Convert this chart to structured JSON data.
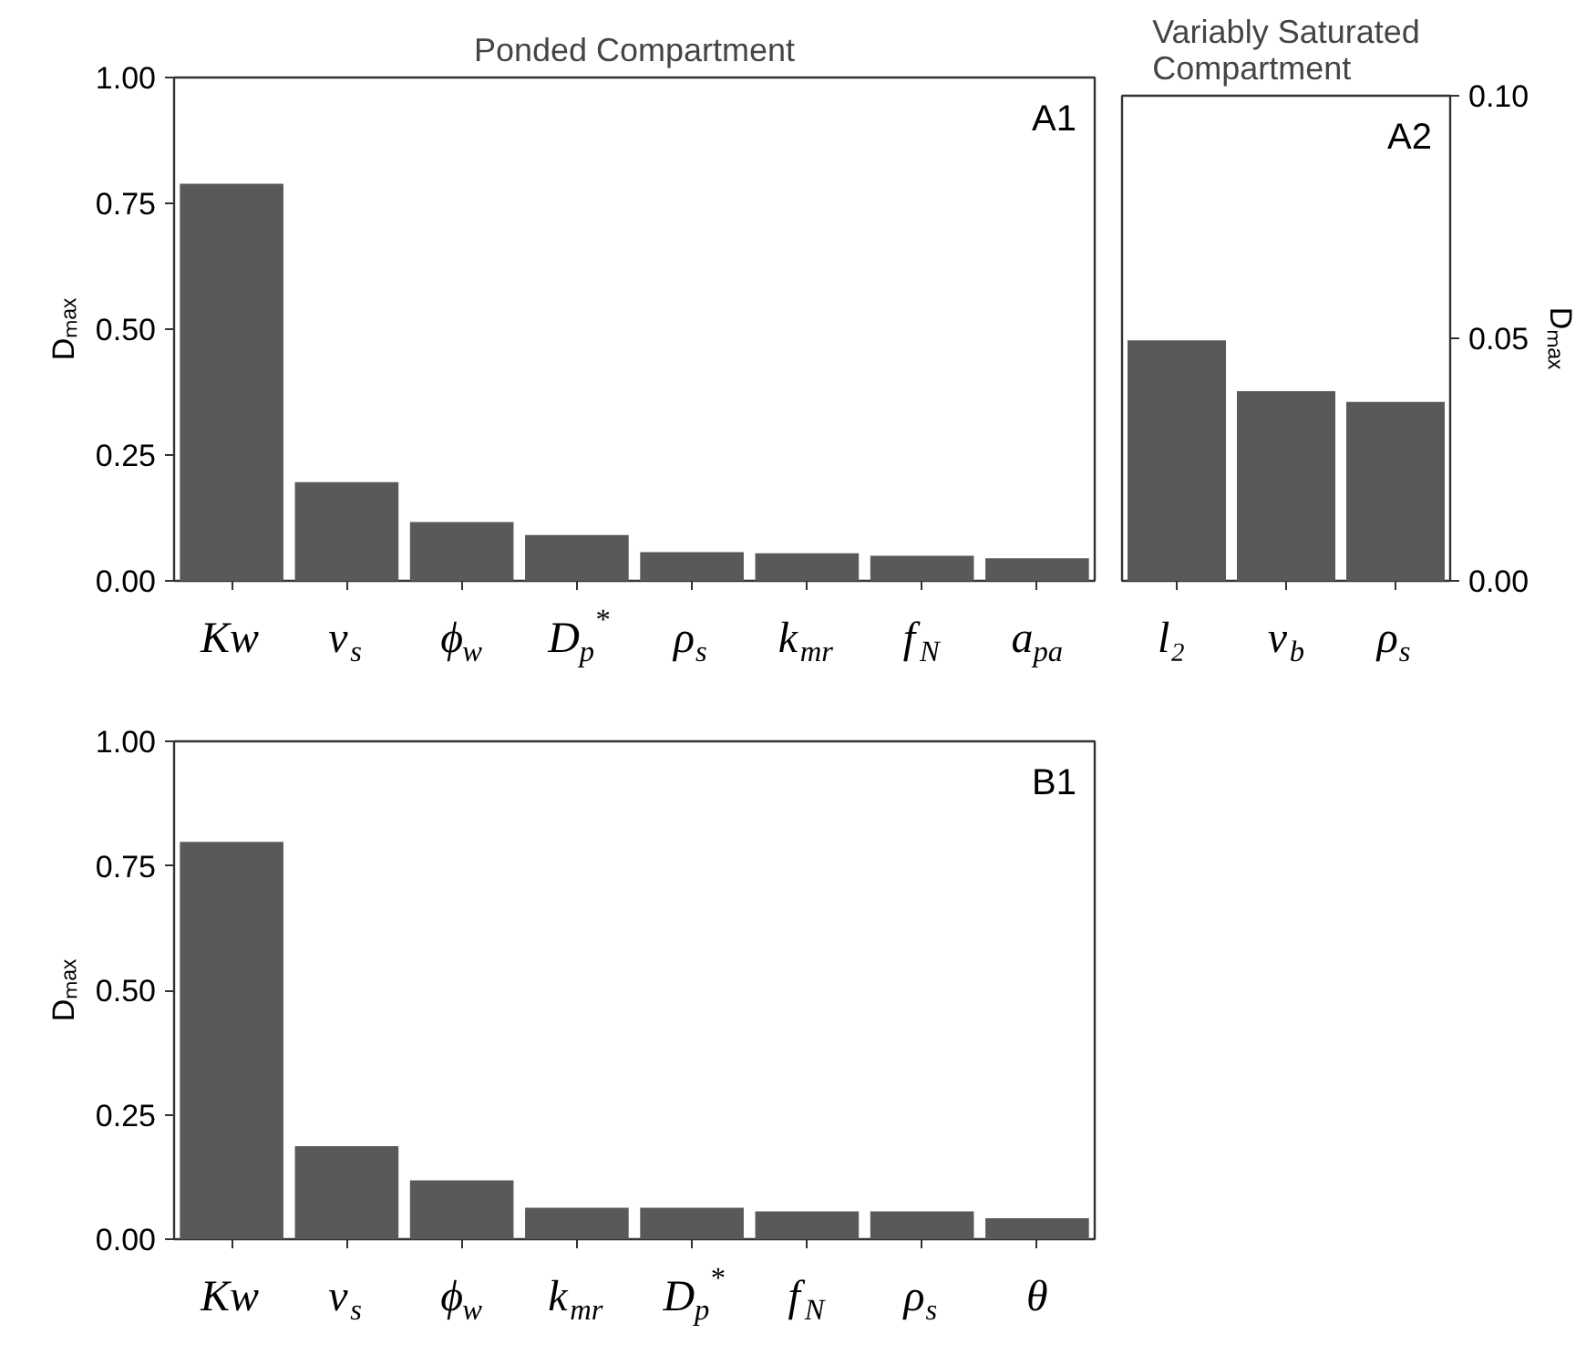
{
  "chart_data": [
    {
      "type": "bar",
      "title": "Ponded Compartment",
      "ylabel": "Dₘₐₓ",
      "annotations": [
        "A1"
      ],
      "categories": [
        "Kw",
        "v$_{s}$",
        "ϕ$_{w}$",
        "D$_{p}$$^{*}$",
        "ρ$_{s}$",
        "k$_{mr}$",
        "f$_{N}$",
        "a$_{pa}$"
      ],
      "series": [
        {
          "color": "#595959",
          "values": [
            0.789,
            0.196,
            0.117,
            0.091,
            0.057,
            0.055,
            0.05,
            0.045
          ]
        }
      ],
      "ylim": [
        0,
        1
      ],
      "yticks": [
        {
          "value": 0,
          "label": "0.00"
        },
        {
          "value": 0.25,
          "label": "0.25"
        },
        {
          "value": 0.5,
          "label": "0.50"
        },
        {
          "value": 0.75,
          "label": "0.75"
        },
        {
          "value": 1,
          "label": "1.00"
        }
      ]
    },
    {
      "type": "bar",
      "title": "Variably Saturated Compartment",
      "y2label": "Dₘₐₓ",
      "annotations": [
        "A2"
      ],
      "categories": [
        "l₂",
        "v$_{b}$",
        "ρ$_{s}$"
      ],
      "series": [
        {
          "color": "#595959",
          "axis": "y2",
          "values": [
            0.0496,
            0.0391,
            0.0369
          ]
        }
      ],
      "y2lim": [
        0,
        0.1
      ],
      "y2ticks": [
        {
          "value": 0,
          "label": "0.00"
        },
        {
          "value": 0.05,
          "label": "0.05"
        },
        {
          "value": 0.1,
          "label": "0.10"
        }
      ]
    },
    {
      "type": "bar",
      "ylabel": "Dₘₐₓ",
      "annotations": [
        "B1"
      ],
      "categories": [
        "Kw",
        "v$_{s}$",
        "ϕ$_{w}$",
        "k$_{mr}$",
        "D$_{p}$$^{*}$",
        "f$_{N}$",
        "ρ$_{s}$",
        "θ"
      ],
      "series": [
        {
          "color": "#595959",
          "values": [
            0.798,
            0.187,
            0.118,
            0.063,
            0.063,
            0.056,
            0.056,
            0.042
          ]
        }
      ],
      "ylim": [
        0,
        1
      ],
      "yticks": [
        {
          "value": 0,
          "label": "0.00"
        },
        {
          "value": 0.25,
          "label": "0.25"
        },
        {
          "value": 0.5,
          "label": "0.50"
        },
        {
          "value": 0.75,
          "label": "0.75"
        },
        {
          "value": 1,
          "label": "1.00"
        }
      ]
    }
  ]
}
